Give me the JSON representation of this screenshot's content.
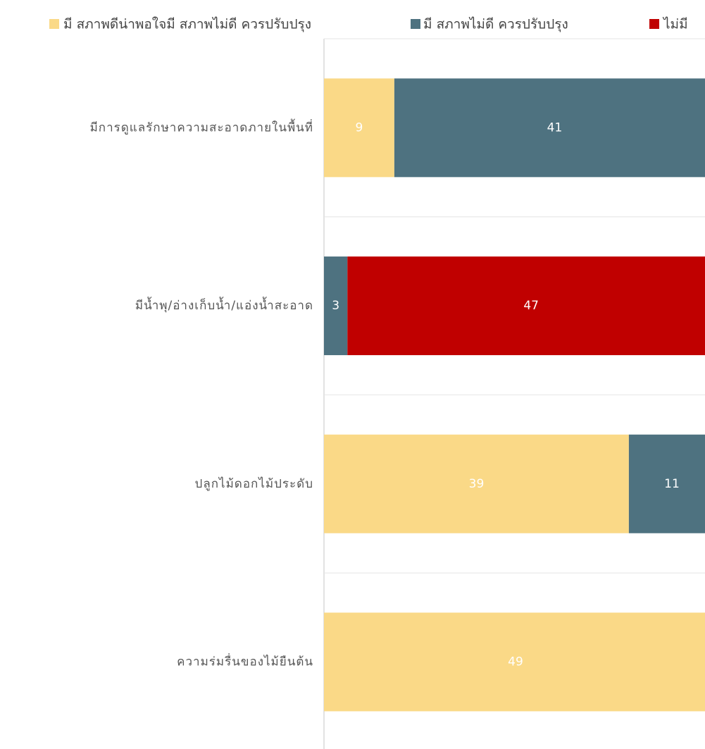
{
  "chart_data": {
    "type": "stacked-bar-horizontal",
    "categories": [
      "มีการดูแลรักษาความสะอาดภายในพื้นที่",
      "มีน้ำพุ/อ่างเก็บน้ำ/แอ่งน้ำสะอาด",
      "ปลูกไม้ดอกไม้ประดับ",
      "ความร่มรื่นของไม้ยืนต้น"
    ],
    "series": [
      {
        "name": "มี สภาพดีน่าพอใจมี สภาพไม่ดี ควรปรับปรุง",
        "color": "#fad987",
        "values": [
          9,
          null,
          39,
          49
        ]
      },
      {
        "name": "มี สภาพไม่ดี ควรปรับปรุง",
        "color": "#4e7280",
        "values": [
          41,
          3,
          11,
          null
        ]
      },
      {
        "name": "ไม่มี",
        "color": "#c00000",
        "values": [
          null,
          47,
          null,
          null
        ]
      }
    ],
    "xlim": [
      0,
      50
    ],
    "legend": "top"
  }
}
